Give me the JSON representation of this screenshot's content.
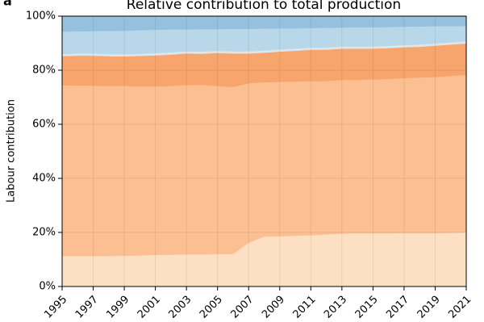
{
  "chart_data": {
    "type": "stacked_area",
    "panel_label": "a",
    "title": "Relative contribution to total production",
    "y_label": "Labour contribution",
    "x": [
      1995,
      1996,
      1997,
      1998,
      1999,
      2000,
      2001,
      2002,
      2003,
      2004,
      2005,
      2006,
      2007,
      2008,
      2009,
      2010,
      2011,
      2012,
      2013,
      2014,
      2015,
      2016,
      2017,
      2018,
      2019,
      2020,
      2021
    ],
    "series": [
      {
        "color": "#fde0c4",
        "values": [
          11.3,
          11.3,
          11.3,
          11.3,
          11.4,
          11.5,
          11.7,
          11.8,
          11.9,
          11.9,
          12.0,
          12.0,
          16.2,
          18.5,
          18.6,
          18.8,
          19.0,
          19.3,
          19.6,
          19.7,
          19.7,
          19.7,
          19.8,
          19.8,
          19.8,
          19.9,
          20.0
        ]
      },
      {
        "color": "#fbbf91",
        "values": [
          63.2,
          63.0,
          63.0,
          62.9,
          62.8,
          62.5,
          62.3,
          62.4,
          62.6,
          62.7,
          62.2,
          61.8,
          59.0,
          57.1,
          57.1,
          57.0,
          57.0,
          56.7,
          56.8,
          56.8,
          56.9,
          57.1,
          57.3,
          57.5,
          57.7,
          58.0,
          58.3
        ]
      },
      {
        "color": "#f7a56d",
        "values": [
          10.7,
          11.1,
          11.1,
          11.0,
          10.9,
          11.3,
          11.5,
          11.6,
          11.7,
          11.5,
          12.2,
          12.4,
          11.0,
          10.9,
          11.2,
          11.4,
          11.6,
          11.6,
          11.6,
          11.5,
          11.4,
          11.4,
          11.4,
          11.4,
          11.6,
          11.6,
          11.6
        ]
      },
      {
        "color": "#dfe6ea",
        "values": [
          0.8,
          0.8,
          0.8,
          0.8,
          0.8,
          0.8,
          0.8,
          0.8,
          0.8,
          0.8,
          0.8,
          0.8,
          0.8,
          0.8,
          0.8,
          0.8,
          0.8,
          0.8,
          0.8,
          0.8,
          0.8,
          0.8,
          0.8,
          0.8,
          0.8,
          0.8,
          0.8
        ]
      },
      {
        "color": "#b8d8e9",
        "values": [
          8.3,
          8.2,
          8.3,
          8.5,
          8.7,
          8.7,
          8.7,
          8.5,
          8.1,
          8.3,
          8.0,
          8.3,
          8.3,
          8.1,
          7.8,
          7.5,
          7.2,
          7.3,
          7.0,
          7.1,
          7.1,
          7.0,
          6.8,
          6.7,
          6.4,
          6.0,
          5.7
        ]
      },
      {
        "color": "#95c1de",
        "values": [
          5.7,
          5.6,
          5.5,
          5.5,
          5.4,
          5.2,
          5.0,
          4.9,
          4.9,
          4.8,
          4.8,
          4.7,
          4.7,
          4.6,
          4.5,
          4.5,
          4.4,
          4.3,
          4.2,
          4.1,
          4.1,
          4.0,
          3.9,
          3.8,
          3.7,
          3.7,
          3.6
        ]
      }
    ],
    "xlim": [
      1995,
      2021
    ],
    "xticks": [
      1995,
      1997,
      1999,
      2001,
      2003,
      2005,
      2007,
      2009,
      2011,
      2013,
      2015,
      2017,
      2019,
      2021
    ],
    "ylim": [
      0,
      100
    ],
    "yticks": [
      {
        "value": 0,
        "label": "0%"
      },
      {
        "value": 20,
        "label": "20%"
      },
      {
        "value": 40,
        "label": "40%"
      },
      {
        "value": 60,
        "label": "60%"
      },
      {
        "value": 80,
        "label": "80%"
      },
      {
        "value": 100,
        "label": "100%"
      }
    ],
    "grid": true
  }
}
